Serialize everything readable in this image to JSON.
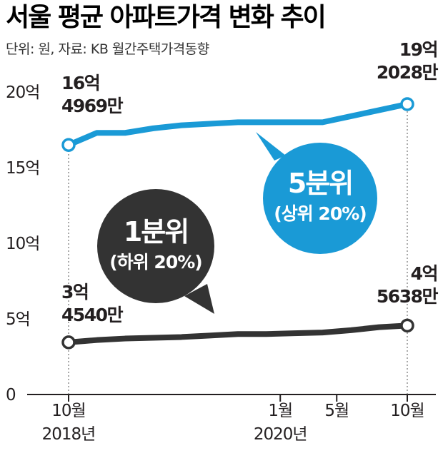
{
  "title": "서울 평균 아파트가격 변화 추이",
  "unit_note": "단위: 원, 자료: KB 월간주택가격동향",
  "chart_data": {
    "type": "line",
    "ylim": [
      0,
      20
    ],
    "y_ticks": [
      {
        "value": 0,
        "label": "0"
      },
      {
        "value": 5,
        "label": "5억"
      },
      {
        "value": 10,
        "label": "10억"
      },
      {
        "value": 15,
        "label": "15억"
      },
      {
        "value": 20,
        "label": "20억"
      }
    ],
    "x_ticks": [
      {
        "x": 0,
        "month": "10월",
        "year": "2018년"
      },
      {
        "x": 15,
        "month": "1월",
        "year": "2020년"
      },
      {
        "x": 19,
        "month": "5월",
        "year": ""
      },
      {
        "x": 24,
        "month": "10월",
        "year": ""
      }
    ],
    "series": [
      {
        "name": "5분위",
        "sub": "(상위 20%)",
        "color": "#1a9ad6",
        "x": [
          0,
          2,
          4,
          6,
          8,
          10,
          12,
          14,
          16,
          18,
          20,
          22,
          24
        ],
        "values": [
          16.5,
          17.3,
          17.3,
          17.6,
          17.8,
          17.9,
          18.0,
          18.0,
          18.0,
          18.0,
          18.4,
          18.8,
          19.2
        ],
        "start_label": [
          "16억",
          "4969만"
        ],
        "end_label": [
          "19억",
          "2028만"
        ]
      },
      {
        "name": "1분위",
        "sub": "(하위 20%)",
        "color": "#333333",
        "x": [
          0,
          2,
          4,
          6,
          8,
          10,
          12,
          14,
          16,
          18,
          20,
          22,
          24
        ],
        "values": [
          3.45,
          3.6,
          3.7,
          3.75,
          3.8,
          3.9,
          4.0,
          4.0,
          4.05,
          4.1,
          4.25,
          4.45,
          4.56
        ],
        "start_label": [
          "3억",
          "4540만"
        ],
        "end_label": [
          "4억",
          "5638만"
        ]
      }
    ]
  }
}
